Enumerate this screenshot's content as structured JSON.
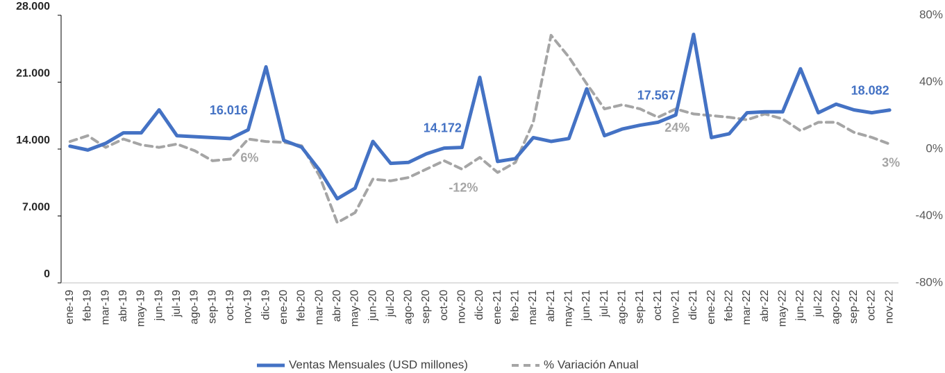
{
  "chart_data": {
    "type": "line",
    "categories": [
      "ene-19",
      "feb-19",
      "mar-19",
      "abr-19",
      "may-19",
      "jun-19",
      "jul-19",
      "ago-19",
      "sep-19",
      "oct-19",
      "nov-19",
      "dic-19",
      "ene-20",
      "feb-20",
      "mar-20",
      "abr-20",
      "may-20",
      "jun-20",
      "jul-20",
      "ago-20",
      "sep-20",
      "oct-20",
      "nov-20",
      "dic-20",
      "ene-21",
      "feb-21",
      "mar-21",
      "abr-21",
      "may-21",
      "jun-21",
      "jul-21",
      "ago-21",
      "sep-21",
      "oct-21",
      "nov-21",
      "dic-21",
      "ene-22",
      "feb-22",
      "mar-22",
      "abr-22",
      "may-22",
      "jun-22",
      "jul-22",
      "ago-22",
      "sep-22",
      "oct-22",
      "nov-22"
    ],
    "series": [
      {
        "name": "Ventas Mensuales (USD millones)",
        "color": "#4472c4",
        "axis": "y",
        "values": [
          14300,
          13900,
          14600,
          15700,
          15700,
          18100,
          15400,
          15300,
          15200,
          15100,
          16016,
          22600,
          14900,
          14200,
          11800,
          8800,
          9900,
          14800,
          12500,
          12600,
          13500,
          14100,
          14172,
          21500,
          12700,
          13000,
          15200,
          14800,
          15100,
          20300,
          15400,
          16100,
          16500,
          16800,
          17567,
          26000,
          15200,
          15600,
          17800,
          17900,
          17900,
          22400,
          17800,
          18700,
          18100,
          17800,
          18082
        ],
        "value_labels": [
          null,
          null,
          null,
          null,
          null,
          null,
          null,
          null,
          null,
          null,
          "16.016",
          null,
          null,
          null,
          null,
          null,
          null,
          null,
          null,
          null,
          null,
          null,
          "14.172",
          null,
          null,
          null,
          null,
          null,
          null,
          null,
          null,
          null,
          null,
          null,
          "17.567",
          null,
          null,
          null,
          null,
          null,
          null,
          null,
          null,
          null,
          null,
          null,
          "18.082"
        ]
      },
      {
        "name": "% Variación Anual",
        "color": "#a5a5a5",
        "axis": "y2",
        "dashed": true,
        "values": [
          4.5,
          8,
          1,
          6,
          2.5,
          1,
          3,
          -1,
          -7,
          -6,
          6,
          4.5,
          4,
          2,
          -16,
          -44,
          -38,
          -18,
          -19,
          -17,
          -12,
          -7,
          -12,
          -5,
          -14,
          -8,
          16,
          68,
          55,
          39,
          24,
          26.5,
          24,
          19,
          24,
          21,
          20,
          19,
          17.5,
          21,
          18,
          11,
          16,
          16,
          10,
          7,
          3
        ],
        "value_labels": [
          null,
          null,
          null,
          null,
          null,
          null,
          null,
          null,
          null,
          null,
          "6%",
          null,
          null,
          null,
          null,
          null,
          null,
          null,
          null,
          null,
          null,
          null,
          "-12%",
          null,
          null,
          null,
          null,
          null,
          null,
          null,
          null,
          null,
          null,
          null,
          "24%",
          null,
          null,
          null,
          null,
          null,
          null,
          null,
          null,
          null,
          null,
          null,
          "3%"
        ]
      }
    ],
    "ylim": [
      0,
      28000
    ],
    "yticks": [
      0,
      {
        "value": 7000,
        "label": "7.000"
      },
      {
        "value": 14000,
        "label": "14.000"
      },
      {
        "value": 21000,
        "label": "21.000"
      },
      {
        "value": 28000,
        "label": "28.000"
      }
    ],
    "y2lim": [
      -80,
      80
    ],
    "y2ticks": [
      {
        "value": -80,
        "label": "-80%"
      },
      {
        "value": -40,
        "label": "-40%"
      },
      {
        "value": 0,
        "label": "0%"
      },
      {
        "value": 40,
        "label": "40%"
      },
      {
        "value": 80,
        "label": "80%"
      }
    ],
    "legend": "bottom"
  }
}
